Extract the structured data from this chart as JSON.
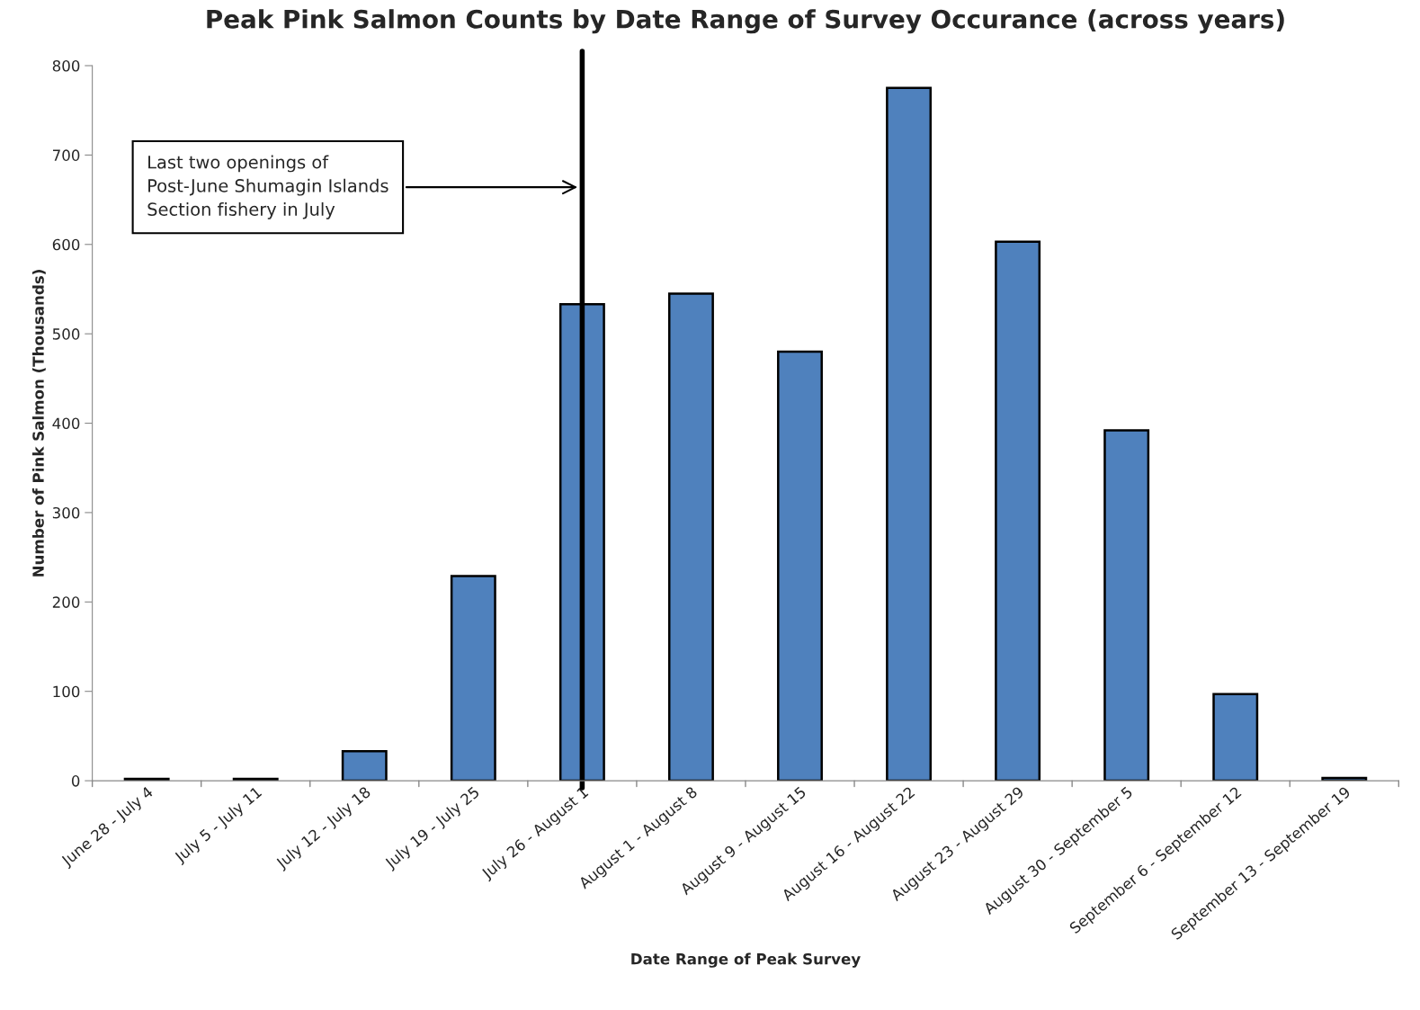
{
  "chart_data": {
    "type": "bar",
    "title": "Peak Pink Salmon Counts by Date Range of Survey Occurance (across years)",
    "xlabel": "Date Range of Peak Survey",
    "ylabel": "Number of Pink Salmon (Thousands)",
    "categories": [
      "June 28 - July 4",
      "July 5 - July 11",
      "July 12 - July 18",
      "July 19 - July 25",
      "July 26 - August 1",
      "August 1 - August 8",
      "August 9 - August 15",
      "August 16 - August 22",
      "August 23 - August 29",
      "August 30 - September 5",
      "September 6 - September 12",
      "September 13 - September 19"
    ],
    "values": [
      2,
      2,
      33,
      229,
      533,
      545,
      480,
      775,
      603,
      392,
      97,
      3
    ],
    "color": "#4f81bd",
    "ylim": [
      0,
      800
    ],
    "yticks": [
      0,
      100,
      200,
      300,
      400,
      500,
      600,
      700,
      800
    ],
    "grid": false,
    "ref_lines": [
      {
        "axis": "x",
        "value": "July 26 - August 1",
        "label": "Last two openings of\nPost-June Shumagin Islands\nSection fishery in July",
        "color": "#000000",
        "line_style": "solid"
      }
    ]
  }
}
